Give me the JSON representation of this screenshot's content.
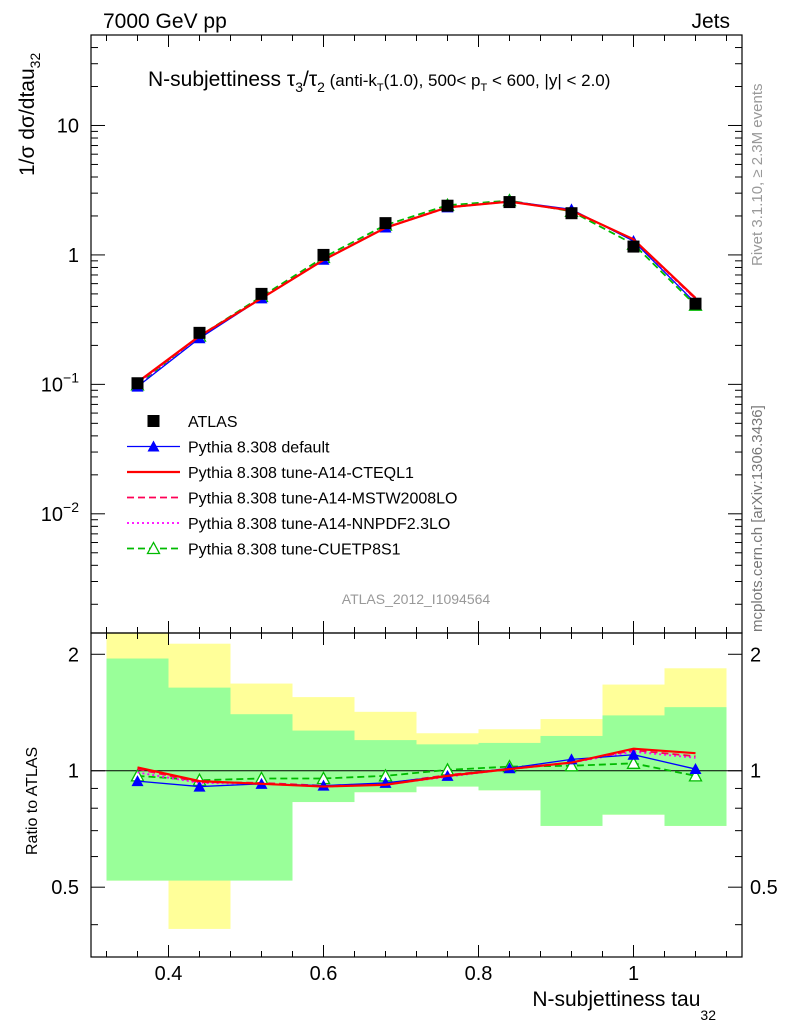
{
  "header": {
    "left": "7000 GeV pp",
    "right": "Jets"
  },
  "side_labels": {
    "rivet": "Rivet 3.1.10, ≥ 2.3M events",
    "mcplots": "mcplots.cern.ch [arXiv:1306.3436]"
  },
  "watermark": "ATLAS_2012_I1094564",
  "main_title": {
    "prefix": "N-subjettiness τ",
    "sub3": "3",
    "slash": "/τ",
    "sub2": "2",
    "cond_a": " (anti-k",
    "sub_t": "T",
    "cond_b": "(1.0), 500< p",
    "sub_t2": "T",
    "cond_c": " < 600, |y| < 2.0)"
  },
  "y_label_top": {
    "text": "1/σ dσ/dtau",
    "sub": "32"
  },
  "y_label_bottom": "Ratio to ATLAS",
  "x_label": {
    "text": "N-subjettiness tau",
    "sub": "32"
  },
  "colors": {
    "data": "#000000",
    "default": "#0000ff",
    "cteql1": "#ff0000",
    "mstw": "#ff0055",
    "nnpdf": "#ff00ff",
    "cuetp8s1": "#00bb00",
    "band_inner": "#99ff99",
    "band_outer": "#ffff99"
  },
  "chart_data": {
    "type": "line",
    "xlabel": "N-subjettiness tau32",
    "ylabel": "1/σ dσ/dtau32",
    "x_range": [
      0.3,
      1.14
    ],
    "y_range_main": [
      0.0012,
      50
    ],
    "y_scale_main": "log",
    "y_range_ratio": [
      0.33,
      2.27
    ],
    "y_scale_ratio": "log",
    "x_ticks": [
      "0.4",
      "0.6",
      "0.8",
      "1"
    ],
    "y_ticks_main": [
      {
        "base": "10",
        "exp": "−2"
      },
      {
        "base": "10",
        "exp": "−1"
      },
      {
        "base": "1",
        "exp": ""
      },
      {
        "base": "10",
        "exp": ""
      }
    ],
    "y_ticks_ratio": [
      "0.5",
      "1",
      "2"
    ],
    "bin_edges": [
      0.32,
      0.4,
      0.48,
      0.56,
      0.64,
      0.72,
      0.8,
      0.88,
      0.96,
      1.04,
      1.12
    ],
    "x": [
      0.36,
      0.44,
      0.52,
      0.6,
      0.68,
      0.76,
      0.84,
      0.92,
      1.0,
      1.08
    ],
    "legend_position": "center-left",
    "series": [
      {
        "key": "data",
        "name": "ATLAS",
        "style": "square",
        "values": [
          0.102,
          0.25,
          0.5,
          1.0,
          1.76,
          2.4,
          2.56,
          2.1,
          1.16,
          0.42
        ]
      },
      {
        "key": "default",
        "name": "Pythia 8.308 default",
        "style": "line-tri",
        "values": [
          0.096,
          0.227,
          0.462,
          0.917,
          1.63,
          2.33,
          2.6,
          2.25,
          1.28,
          0.425
        ]
      },
      {
        "key": "cteql1",
        "name": "Pythia 8.308 tune-A14-CTEQL1",
        "style": "solid",
        "values": [
          0.104,
          0.236,
          0.462,
          0.913,
          1.62,
          2.33,
          2.58,
          2.2,
          1.32,
          0.465
        ]
      },
      {
        "key": "mstw",
        "name": "Pythia 8.308 tune-A14-MSTW2008LO",
        "style": "dashed",
        "values": [
          0.103,
          0.235,
          0.465,
          0.918,
          1.63,
          2.34,
          2.58,
          2.21,
          1.31,
          0.458
        ]
      },
      {
        "key": "nnpdf",
        "name": "Pythia 8.308 tune-A14-NNPDF2.3LO",
        "style": "dotted",
        "values": [
          0.101,
          0.233,
          0.462,
          0.913,
          1.62,
          2.32,
          2.58,
          2.21,
          1.3,
          0.455
        ]
      },
      {
        "key": "cuetp8s1",
        "name": "Pythia 8.308 tune-CUETP8S1",
        "style": "dashed-opentri",
        "values": [
          0.099,
          0.236,
          0.477,
          0.955,
          1.7,
          2.42,
          2.63,
          2.17,
          1.21,
          0.409
        ]
      }
    ],
    "ratio": {
      "inner_band": [
        [
          0.52,
          1.95
        ],
        [
          0.52,
          1.64
        ],
        [
          0.52,
          1.4
        ],
        [
          0.83,
          1.27
        ],
        [
          0.88,
          1.2
        ],
        [
          0.91,
          1.17
        ],
        [
          0.89,
          1.18
        ],
        [
          0.72,
          1.23
        ],
        [
          0.77,
          1.39
        ],
        [
          0.72,
          1.46
        ]
      ],
      "outer_band": [
        [
          0.52,
          2.6
        ],
        [
          0.39,
          2.13
        ],
        [
          0.74,
          1.68
        ],
        [
          0.83,
          1.55
        ],
        [
          0.88,
          1.42
        ],
        [
          0.91,
          1.25
        ],
        [
          0.89,
          1.28
        ],
        [
          0.72,
          1.36
        ],
        [
          0.77,
          1.67
        ],
        [
          0.72,
          1.84
        ]
      ],
      "series": [
        {
          "key": "default",
          "values": [
            0.94,
            0.91,
            0.925,
            0.915,
            0.93,
            0.97,
            1.015,
            1.07,
            1.1,
            1.01
          ]
        },
        {
          "key": "cteql1",
          "values": [
            1.02,
            0.94,
            0.925,
            0.91,
            0.92,
            0.97,
            1.01,
            1.05,
            1.14,
            1.11
          ]
        },
        {
          "key": "mstw",
          "values": [
            1.01,
            0.935,
            0.93,
            0.915,
            0.925,
            0.975,
            1.01,
            1.05,
            1.13,
            1.09
          ]
        },
        {
          "key": "nnpdf",
          "values": [
            0.99,
            0.93,
            0.925,
            0.91,
            0.92,
            0.965,
            1.01,
            1.05,
            1.12,
            1.08
          ]
        },
        {
          "key": "cuetp8s1",
          "values": [
            0.97,
            0.945,
            0.955,
            0.955,
            0.97,
            1.005,
            1.025,
            1.03,
            1.045,
            0.97
          ]
        }
      ]
    }
  }
}
